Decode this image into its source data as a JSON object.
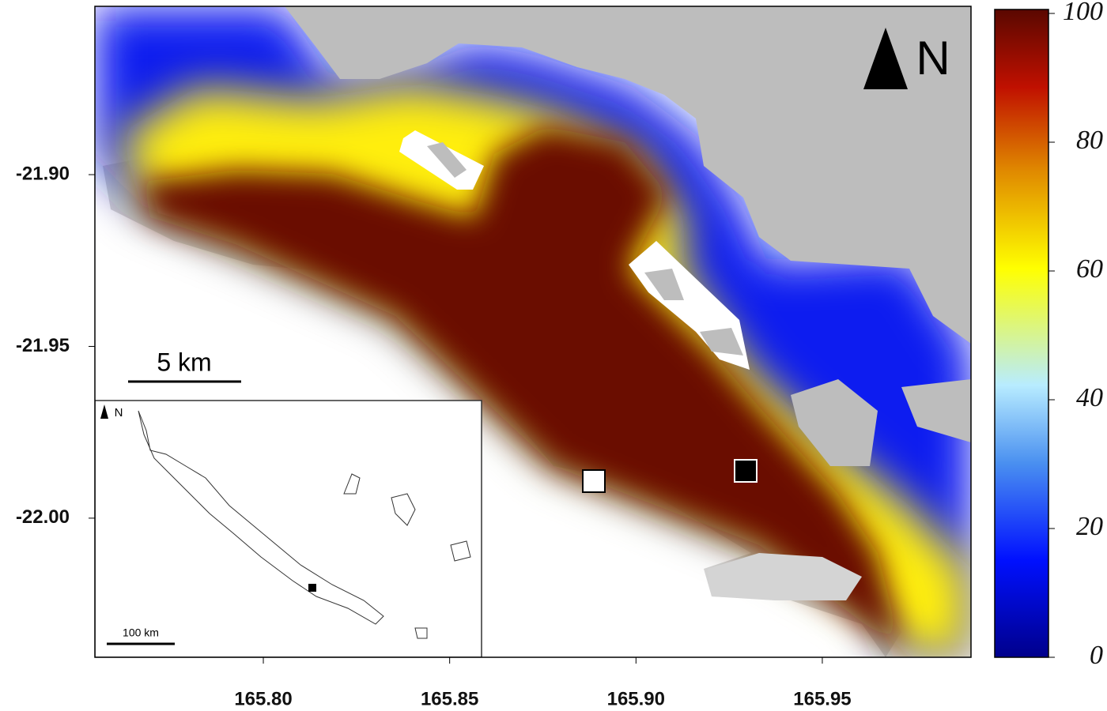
{
  "map": {
    "xaxis": {
      "lim": [
        165.7548,
        165.9899
      ],
      "ticks": [
        {
          "value": 165.8,
          "label": "165.80"
        },
        {
          "value": 165.85,
          "label": "165.85"
        },
        {
          "value": 165.9,
          "label": "165.90"
        },
        {
          "value": 165.95,
          "label": "165.95"
        }
      ]
    },
    "yaxis": {
      "lim": [
        -22.0405,
        -21.851
      ],
      "ticks": [
        {
          "value": -21.9,
          "label": "-21.90"
        },
        {
          "value": -21.95,
          "label": "-21.95"
        },
        {
          "value": -22.0,
          "label": "-22.00"
        }
      ]
    },
    "colorbar": {
      "lim": [
        0,
        100
      ],
      "ticks": [
        0,
        20,
        40,
        60,
        80,
        100
      ]
    },
    "north_label": "N",
    "scale_bar": "5 km",
    "inset": {
      "north_label": "N",
      "scale_bar": "100 km"
    }
  }
}
